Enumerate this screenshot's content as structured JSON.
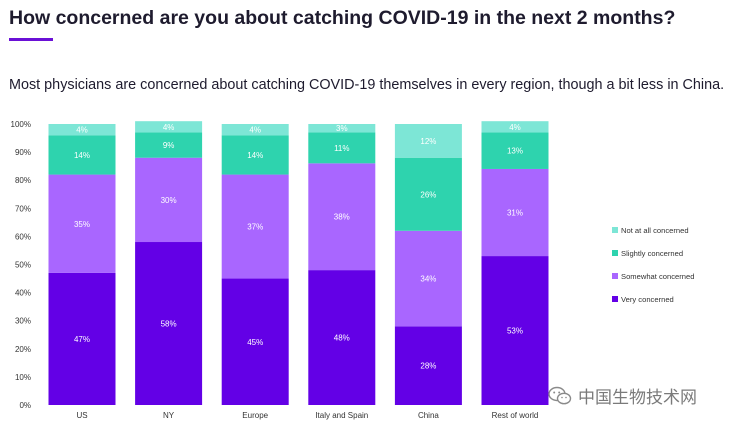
{
  "header": {
    "title": "How concerned are you about catching COVID-19 in the next 2 months?",
    "subtitle": "Most physicians are concerned about catching COVID-19 themselves in every region, though a bit less in China."
  },
  "watermark": {
    "text": "中国生物技术网",
    "icon": "wechat-icon"
  },
  "chart_data": {
    "type": "bar",
    "stacked": true,
    "categories": [
      "US",
      "NY",
      "Europe",
      "Italy and Spain",
      "China",
      "Rest of world"
    ],
    "y_ticks": [
      "0%",
      "10%",
      "20%",
      "30%",
      "40%",
      "50%",
      "60%",
      "70%",
      "80%",
      "90%",
      "100%"
    ],
    "ylim": [
      0,
      100
    ],
    "series": [
      {
        "name": "Very concerned",
        "color": "#6300e6",
        "labels": [
          "47%",
          "58%",
          "45%",
          "48%",
          "28%",
          "53%"
        ],
        "values": [
          47,
          58,
          45,
          48,
          28,
          53
        ]
      },
      {
        "name": "Somewhat concerned",
        "color": "#a966ff",
        "labels": [
          "35%",
          "30%",
          "37%",
          "38%",
          "34%",
          "31%"
        ],
        "values": [
          35,
          30,
          37,
          38,
          34,
          31
        ]
      },
      {
        "name": "Slightly concerned",
        "color": "#2ed3ae",
        "labels": [
          "14%",
          "9%",
          "14%",
          "11%",
          "26%",
          "13%"
        ],
        "values": [
          14,
          9,
          14,
          11,
          26,
          13
        ]
      },
      {
        "name": "Not at all concerned",
        "color": "#7de6d6",
        "labels": [
          "4%",
          "4%",
          "4%",
          "3%",
          "12%",
          "4%"
        ],
        "values": [
          4,
          4,
          4,
          3,
          12,
          4
        ]
      }
    ],
    "legend": {
      "position": "right",
      "order": [
        "Not at all concerned",
        "Slightly concerned",
        "Somewhat concerned",
        "Very concerned"
      ]
    },
    "grid": false
  }
}
